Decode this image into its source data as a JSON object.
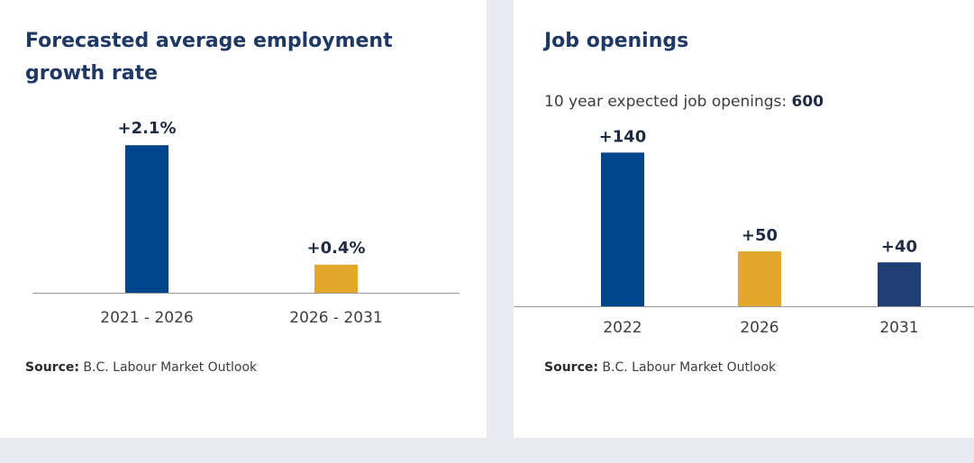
{
  "chart_data": [
    {
      "type": "bar",
      "title": "Forecasted average employment growth rate",
      "categories": [
        "2021 - 2026",
        "2026 - 2031"
      ],
      "values": [
        2.1,
        0.4
      ],
      "value_labels": [
        "+2.1%",
        "+0.4%"
      ],
      "colors": [
        "#00448c",
        "#e3a82b"
      ],
      "ylim": [
        0,
        2.5
      ],
      "grid": false,
      "source_prefix": "Source:",
      "source_text": "B.C. Labour Market Outlook"
    },
    {
      "type": "bar",
      "title": "Job openings",
      "subtitle_prefix": "10 year expected job openings:",
      "subtitle_value": "600",
      "categories": [
        "2022",
        "2026",
        "2031"
      ],
      "values": [
        140,
        50,
        40
      ],
      "value_labels": [
        "+140",
        "+50",
        "+40"
      ],
      "colors": [
        "#00448c",
        "#e3a82b",
        "#1f3f73"
      ],
      "ylim": [
        0,
        160
      ],
      "grid": false,
      "source_prefix": "Source:",
      "source_text": "B.C. Labour Market Outlook"
    }
  ]
}
